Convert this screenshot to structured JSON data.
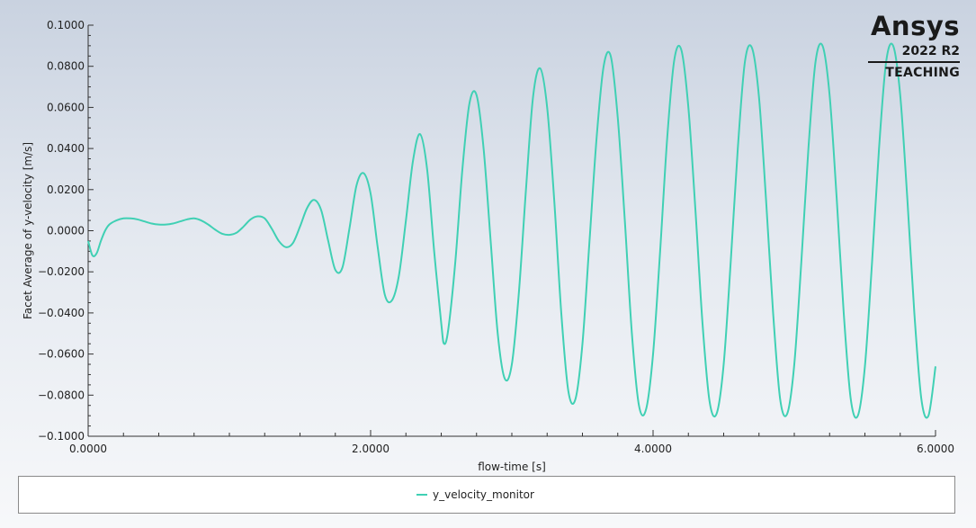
{
  "brand": {
    "name": "Ansys",
    "version": "2022 R2",
    "edition": "TEACHING"
  },
  "chart_data": {
    "type": "line",
    "title": "",
    "xlabel": "flow-time [s]",
    "ylabel": "Facet Average of y-velocity [m/s]",
    "xlim": [
      0,
      6.0
    ],
    "ylim": [
      -0.1,
      0.1
    ],
    "x_ticks": [
      0,
      2,
      4,
      6
    ],
    "x_tick_labels": [
      "0.0000",
      "2.0000",
      "4.0000",
      "6.0000"
    ],
    "y_ticks": [
      0.1,
      0.08,
      0.06,
      0.04,
      0.02,
      0,
      -0.02,
      -0.04,
      -0.06,
      -0.08,
      -0.1
    ],
    "y_tick_labels": [
      "0.1000",
      "0.0800",
      "0.0600",
      "0.0400",
      "0.0200",
      "0.0000",
      "−0.0200",
      "−0.0400",
      "−0.0600",
      "−0.0800",
      "−0.1000"
    ],
    "grid": false,
    "legend_position": "bottom",
    "series": [
      {
        "name": "y_velocity_monitor",
        "color": "#40d0b4",
        "x": [
          0.0,
          0.03,
          0.06,
          0.09,
          0.12,
          0.15,
          0.2,
          0.25,
          0.3,
          0.35,
          0.4,
          0.45,
          0.5,
          0.55,
          0.6,
          0.65,
          0.7,
          0.75,
          0.8,
          0.85,
          0.9,
          0.95,
          1.0,
          1.05,
          1.1,
          1.15,
          1.2,
          1.25,
          1.3,
          1.35,
          1.4,
          1.45,
          1.5,
          1.55,
          1.6,
          1.65,
          1.7,
          1.75,
          1.8,
          1.85,
          1.9,
          1.95,
          2.0,
          2.05,
          2.1,
          2.15,
          2.2,
          2.25,
          2.3,
          2.35,
          2.4,
          2.45,
          2.5,
          2.52,
          2.55,
          2.6,
          2.65,
          2.7,
          2.75,
          2.8,
          2.85,
          2.9,
          2.95,
          3.0,
          3.05,
          3.1,
          3.15,
          3.2,
          3.25,
          3.3,
          3.35,
          3.4,
          3.45,
          3.5,
          3.55,
          3.6,
          3.65,
          3.7,
          3.75,
          3.8,
          3.85,
          3.9,
          3.95,
          4.0,
          4.05,
          4.1,
          4.15,
          4.2,
          4.25,
          4.3,
          4.35,
          4.4,
          4.45,
          4.5,
          4.55,
          4.6,
          4.65,
          4.7,
          4.75,
          4.8,
          4.85,
          4.9,
          4.95,
          5.0,
          5.05,
          5.1,
          5.15,
          5.2,
          5.25,
          5.3,
          5.35,
          5.4,
          5.45,
          5.5,
          5.55,
          5.6,
          5.65,
          5.7,
          5.75,
          5.8,
          5.85,
          5.9,
          5.95,
          6.0
        ],
        "y": [
          -0.005,
          -0.012,
          -0.011,
          -0.005,
          0.0,
          0.003,
          0.005,
          0.006,
          0.006,
          0.0055,
          0.0045,
          0.0035,
          0.003,
          0.003,
          0.0035,
          0.0045,
          0.0055,
          0.006,
          0.005,
          0.003,
          0.0005,
          -0.0015,
          -0.002,
          -0.001,
          0.002,
          0.0055,
          0.007,
          0.006,
          0.001,
          -0.005,
          -0.008,
          -0.006,
          0.002,
          0.011,
          0.015,
          0.01,
          -0.005,
          -0.019,
          -0.018,
          0.001,
          0.022,
          0.028,
          0.018,
          -0.008,
          -0.031,
          -0.034,
          -0.022,
          0.005,
          0.034,
          0.047,
          0.03,
          -0.01,
          -0.045,
          -0.055,
          -0.048,
          -0.015,
          0.03,
          0.062,
          0.066,
          0.04,
          -0.005,
          -0.05,
          -0.072,
          -0.065,
          -0.03,
          0.02,
          0.065,
          0.079,
          0.06,
          0.015,
          -0.04,
          -0.078,
          -0.082,
          -0.055,
          -0.005,
          0.045,
          0.08,
          0.085,
          0.055,
          0.005,
          -0.05,
          -0.085,
          -0.087,
          -0.06,
          -0.01,
          0.045,
          0.083,
          0.088,
          0.06,
          0.01,
          -0.045,
          -0.083,
          -0.089,
          -0.065,
          -0.015,
          0.04,
          0.082,
          0.089,
          0.065,
          0.015,
          -0.04,
          -0.082,
          -0.089,
          -0.065,
          -0.015,
          0.04,
          0.082,
          0.09,
          0.066,
          0.016,
          -0.04,
          -0.082,
          -0.09,
          -0.066,
          -0.016,
          0.04,
          0.082,
          0.09,
          0.066,
          0.016,
          -0.04,
          -0.082,
          -0.09,
          -0.066
        ]
      }
    ]
  }
}
